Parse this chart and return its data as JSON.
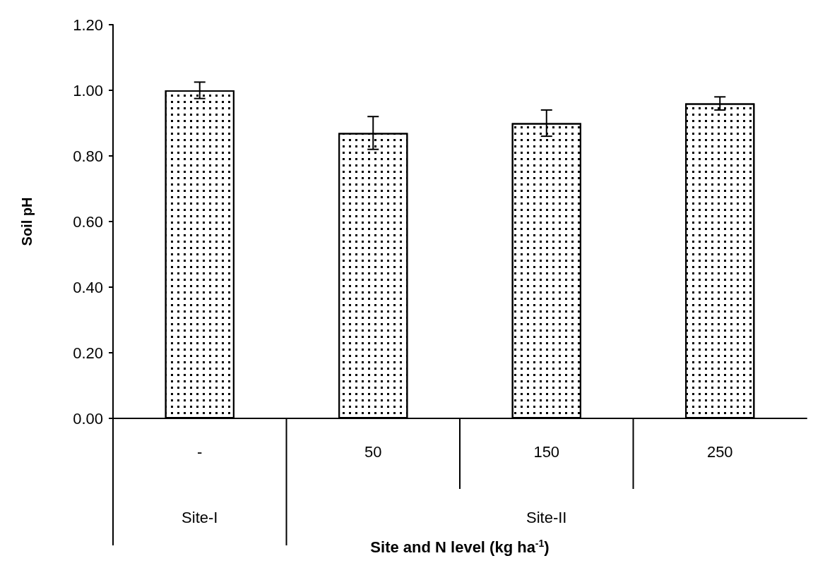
{
  "chart_data": {
    "type": "bar",
    "ylabel": "Soil pH",
    "xlabel": "Site and N level (kg ha$^{-1}$)",
    "categories": [
      "-",
      "50",
      "150",
      "250"
    ],
    "values": [
      1.0,
      0.87,
      0.9,
      0.96
    ],
    "errors": [
      0.025,
      0.05,
      0.04,
      0.02
    ],
    "color": "#ffffff",
    "ylim": [
      0,
      1.2
    ],
    "yticks": [
      {
        "value": 0,
        "label": "0.00"
      },
      {
        "value": 0.2,
        "label": "0.20"
      },
      {
        "value": 0.4,
        "label": "0.40"
      },
      {
        "value": 0.6,
        "label": "0.60"
      },
      {
        "value": 0.8,
        "label": "0.80"
      },
      {
        "value": 1.0,
        "label": "1.00"
      },
      {
        "value": 1.2,
        "label": "1.20"
      }
    ],
    "annotations": [
      "Site-I",
      "Site-II"
    ],
    "grid": false
  }
}
